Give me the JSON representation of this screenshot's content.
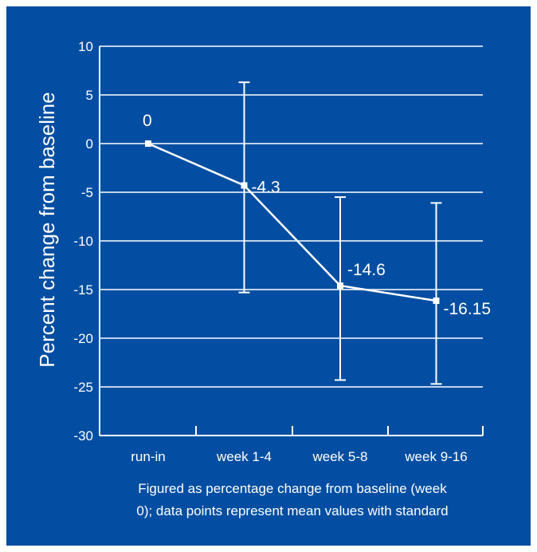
{
  "chart_data": {
    "type": "line",
    "title": "",
    "xlabel": "",
    "ylabel": "Percent change from baseline",
    "categories": [
      "run-in",
      "week 1-4",
      "week 5-8",
      "week 9-16"
    ],
    "values": [
      0,
      -4.3,
      -14.6,
      -16.15
    ],
    "error_low": [
      0,
      -15.3,
      -24.3,
      -24.7
    ],
    "error_high": [
      0,
      6.3,
      -5.5,
      -6.1
    ],
    "data_labels": [
      "0",
      "-4.3",
      "-14.6",
      "-16.15"
    ],
    "ylim": [
      -30,
      10
    ],
    "yticks": [
      10,
      5,
      0,
      -5,
      -10,
      -15,
      -20,
      -25,
      -30
    ],
    "grid": true,
    "colors": {
      "background": "#034ea2",
      "foreground": "#ffffff"
    }
  },
  "caption": {
    "line1": "Figured as percentage change from baseline (week",
    "line2": "0); data points represent mean values with standard"
  }
}
